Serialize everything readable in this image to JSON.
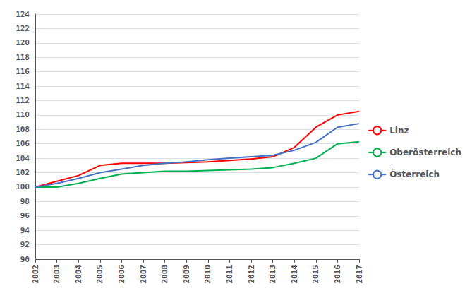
{
  "chart_data": {
    "type": "line",
    "x": [
      2002,
      2003,
      2004,
      2005,
      2006,
      2007,
      2008,
      2009,
      2010,
      2011,
      2012,
      2013,
      2014,
      2015,
      2016,
      2017
    ],
    "series": [
      {
        "name": "Linz",
        "color": "#FF0000",
        "values": [
          100.0,
          100.8,
          101.6,
          103.0,
          103.3,
          103.3,
          103.3,
          103.4,
          103.5,
          103.7,
          103.9,
          104.2,
          105.5,
          108.3,
          110.0,
          110.5
        ]
      },
      {
        "name": "Oberösterreich",
        "color": "#00B050",
        "values": [
          100.0,
          100.0,
          100.5,
          101.2,
          101.8,
          102.0,
          102.2,
          102.2,
          102.3,
          102.4,
          102.5,
          102.7,
          103.3,
          104.0,
          106.0,
          106.3
        ]
      },
      {
        "name": "Österreich",
        "color": "#4472C4",
        "values": [
          100.0,
          100.5,
          101.2,
          102.0,
          102.5,
          103.0,
          103.3,
          103.5,
          103.8,
          104.0,
          104.2,
          104.4,
          105.1,
          106.2,
          108.3,
          108.8
        ]
      }
    ],
    "xlim": [
      2002,
      2017
    ],
    "xticks": [
      2002,
      2003,
      2004,
      2005,
      2006,
      2007,
      2008,
      2009,
      2010,
      2011,
      2012,
      2013,
      2014,
      2015,
      2016,
      2017
    ],
    "ylim": [
      90,
      124
    ],
    "yticks": [
      90,
      92,
      94,
      96,
      98,
      100,
      102,
      104,
      106,
      108,
      110,
      112,
      114,
      116,
      118,
      120,
      122,
      124
    ],
    "grid": true,
    "legend": "right"
  }
}
